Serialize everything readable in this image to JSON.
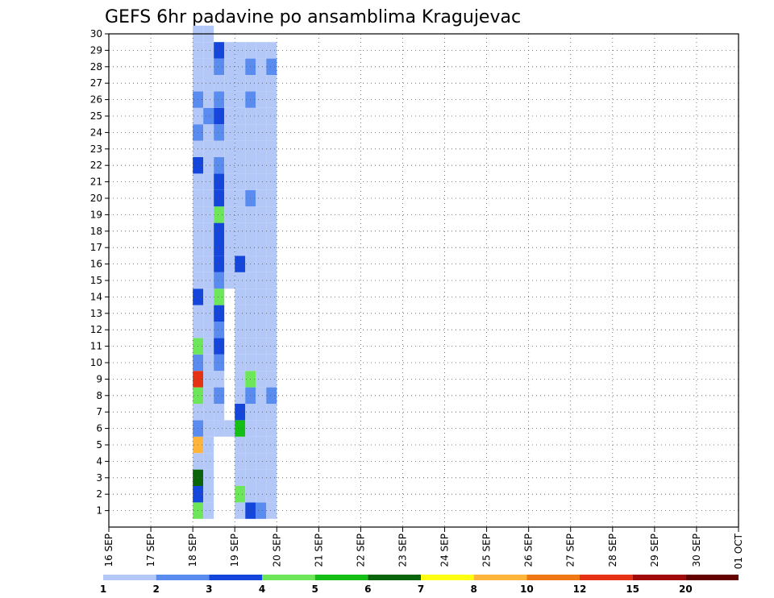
{
  "chart_data": {
    "type": "heatmap",
    "title": "GEFS 6hr padavine po ansamblima Kragujevac",
    "x_tick_labels": [
      "16 SEP",
      "17 SEP",
      "18 SEP",
      "19 SEP",
      "20 SEP",
      "21 SEP",
      "22 SEP",
      "23 SEP",
      "24 SEP",
      "25 SEP",
      "26 SEP",
      "27 SEP",
      "28 SEP",
      "29 SEP",
      "30 SEP",
      "01 OCT"
    ],
    "y_tick_labels": [
      "1",
      "2",
      "3",
      "4",
      "5",
      "6",
      "7",
      "8",
      "9",
      "10",
      "11",
      "12",
      "13",
      "14",
      "15",
      "16",
      "17",
      "18",
      "19",
      "20",
      "21",
      "22",
      "23",
      "24",
      "25",
      "26",
      "27",
      "28",
      "29",
      "30"
    ],
    "y_range": [
      0,
      30
    ],
    "x_range_days": [
      0,
      15
    ],
    "grid": "dotted",
    "colorbar": {
      "levels": [
        "1",
        "2",
        "3",
        "4",
        "5",
        "6",
        "7",
        "8",
        "10",
        "12",
        "15",
        "20"
      ],
      "colors": [
        "#b4c8f8",
        "#5a8cf0",
        "#1446dc",
        "#6ee65a",
        "#14be14",
        "#0a640a",
        "#ffff14",
        "#ffb43c",
        "#f07814",
        "#e63214",
        "#a00a0a",
        "#640000"
      ]
    },
    "cells": [
      [
        0,
        30,
        1
      ],
      [
        0,
        1,
        4
      ],
      [
        0,
        2,
        3
      ],
      [
        0,
        3,
        6
      ],
      [
        0,
        4,
        1
      ],
      [
        0,
        5,
        8
      ],
      [
        0,
        6,
        2
      ],
      [
        0,
        7,
        1
      ],
      [
        0,
        8,
        4
      ],
      [
        0,
        9,
        10
      ],
      [
        0,
        10,
        2
      ],
      [
        0,
        11,
        4
      ],
      [
        0,
        12,
        1
      ],
      [
        0,
        13,
        1
      ],
      [
        0,
        14,
        3
      ],
      [
        0,
        15,
        1
      ],
      [
        0,
        16,
        1
      ],
      [
        0,
        17,
        1
      ],
      [
        0,
        18,
        1
      ],
      [
        0,
        19,
        1
      ],
      [
        0,
        20,
        1
      ],
      [
        0,
        21,
        1
      ],
      [
        0,
        22,
        3
      ],
      [
        0,
        23,
        1
      ],
      [
        0,
        24,
        2
      ],
      [
        0,
        25,
        1
      ],
      [
        0,
        26,
        2
      ],
      [
        0,
        27,
        1
      ],
      [
        0,
        28,
        1
      ],
      [
        0,
        29,
        1
      ],
      [
        1,
        30,
        1
      ],
      [
        1,
        1,
        1
      ],
      [
        1,
        2,
        1
      ],
      [
        1,
        3,
        1
      ],
      [
        1,
        4,
        1
      ],
      [
        1,
        5,
        1
      ],
      [
        1,
        6,
        1
      ],
      [
        1,
        7,
        1
      ],
      [
        1,
        8,
        1
      ],
      [
        1,
        9,
        1
      ],
      [
        1,
        10,
        1
      ],
      [
        1,
        11,
        1
      ],
      [
        1,
        12,
        1
      ],
      [
        1,
        13,
        1
      ],
      [
        1,
        14,
        1
      ],
      [
        1,
        15,
        1
      ],
      [
        1,
        16,
        1
      ],
      [
        1,
        17,
        1
      ],
      [
        1,
        18,
        1
      ],
      [
        1,
        19,
        1
      ],
      [
        1,
        20,
        1
      ],
      [
        1,
        21,
        1
      ],
      [
        1,
        22,
        1
      ],
      [
        1,
        23,
        1
      ],
      [
        1,
        24,
        1
      ],
      [
        1,
        25,
        2
      ],
      [
        1,
        26,
        1
      ],
      [
        1,
        27,
        1
      ],
      [
        1,
        28,
        1
      ],
      [
        1,
        29,
        1
      ],
      [
        2,
        6,
        1
      ],
      [
        2,
        7,
        1
      ],
      [
        2,
        8,
        2
      ],
      [
        2,
        9,
        1
      ],
      [
        2,
        10,
        2
      ],
      [
        2,
        11,
        3
      ],
      [
        2,
        12,
        2
      ],
      [
        2,
        13,
        3
      ],
      [
        2,
        14,
        4
      ],
      [
        2,
        15,
        2
      ],
      [
        2,
        16,
        3
      ],
      [
        2,
        17,
        3
      ],
      [
        2,
        18,
        3
      ],
      [
        2,
        19,
        4
      ],
      [
        2,
        20,
        3
      ],
      [
        2,
        21,
        3
      ],
      [
        2,
        22,
        2
      ],
      [
        2,
        23,
        1
      ],
      [
        2,
        24,
        2
      ],
      [
        2,
        25,
        3
      ],
      [
        2,
        26,
        2
      ],
      [
        2,
        27,
        1
      ],
      [
        2,
        28,
        2
      ],
      [
        2,
        29,
        3
      ],
      [
        3,
        6,
        1
      ],
      [
        3,
        15,
        1
      ],
      [
        3,
        16,
        1
      ],
      [
        3,
        17,
        1
      ],
      [
        3,
        18,
        1
      ],
      [
        3,
        19,
        1
      ],
      [
        3,
        20,
        1
      ],
      [
        3,
        21,
        1
      ],
      [
        3,
        22,
        1
      ],
      [
        3,
        23,
        1
      ],
      [
        3,
        24,
        1
      ],
      [
        3,
        25,
        1
      ],
      [
        3,
        26,
        1
      ],
      [
        3,
        27,
        1
      ],
      [
        3,
        28,
        1
      ],
      [
        3,
        29,
        1
      ],
      [
        4,
        1,
        1
      ],
      [
        4,
        2,
        4
      ],
      [
        4,
        3,
        1
      ],
      [
        4,
        4,
        1
      ],
      [
        4,
        5,
        1
      ],
      [
        4,
        6,
        5
      ],
      [
        4,
        7,
        3
      ],
      [
        4,
        8,
        1
      ],
      [
        4,
        9,
        1
      ],
      [
        4,
        10,
        1
      ],
      [
        4,
        11,
        1
      ],
      [
        4,
        12,
        1
      ],
      [
        4,
        13,
        1
      ],
      [
        4,
        14,
        1
      ],
      [
        4,
        15,
        1
      ],
      [
        4,
        16,
        3
      ],
      [
        4,
        17,
        1
      ],
      [
        4,
        18,
        1
      ],
      [
        4,
        19,
        1
      ],
      [
        4,
        20,
        1
      ],
      [
        4,
        21,
        1
      ],
      [
        4,
        22,
        1
      ],
      [
        4,
        23,
        1
      ],
      [
        4,
        24,
        1
      ],
      [
        4,
        25,
        1
      ],
      [
        4,
        26,
        1
      ],
      [
        4,
        27,
        1
      ],
      [
        4,
        28,
        1
      ],
      [
        4,
        29,
        1
      ],
      [
        5,
        1,
        3
      ],
      [
        5,
        2,
        1
      ],
      [
        5,
        3,
        1
      ],
      [
        5,
        4,
        1
      ],
      [
        5,
        5,
        1
      ],
      [
        5,
        6,
        1
      ],
      [
        5,
        7,
        1
      ],
      [
        5,
        8,
        2
      ],
      [
        5,
        9,
        4
      ],
      [
        5,
        10,
        1
      ],
      [
        5,
        11,
        1
      ],
      [
        5,
        12,
        1
      ],
      [
        5,
        13,
        1
      ],
      [
        5,
        14,
        1
      ],
      [
        5,
        15,
        1
      ],
      [
        5,
        16,
        1
      ],
      [
        5,
        17,
        1
      ],
      [
        5,
        18,
        1
      ],
      [
        5,
        19,
        1
      ],
      [
        5,
        20,
        2
      ],
      [
        5,
        21,
        1
      ],
      [
        5,
        22,
        1
      ],
      [
        5,
        23,
        1
      ],
      [
        5,
        24,
        1
      ],
      [
        5,
        25,
        1
      ],
      [
        5,
        26,
        2
      ],
      [
        5,
        27,
        1
      ],
      [
        5,
        28,
        2
      ],
      [
        5,
        29,
        1
      ],
      [
        6,
        1,
        2
      ],
      [
        6,
        2,
        1
      ],
      [
        6,
        3,
        1
      ],
      [
        6,
        4,
        1
      ],
      [
        6,
        5,
        1
      ],
      [
        6,
        6,
        1
      ],
      [
        6,
        7,
        1
      ],
      [
        6,
        8,
        1
      ],
      [
        6,
        9,
        1
      ],
      [
        6,
        10,
        1
      ],
      [
        6,
        11,
        1
      ],
      [
        6,
        12,
        1
      ],
      [
        6,
        13,
        1
      ],
      [
        6,
        14,
        1
      ],
      [
        6,
        15,
        1
      ],
      [
        6,
        16,
        1
      ],
      [
        6,
        17,
        1
      ],
      [
        6,
        18,
        1
      ],
      [
        6,
        19,
        1
      ],
      [
        6,
        20,
        1
      ],
      [
        6,
        21,
        1
      ],
      [
        6,
        22,
        1
      ],
      [
        6,
        23,
        1
      ],
      [
        6,
        24,
        1
      ],
      [
        6,
        25,
        1
      ],
      [
        6,
        26,
        1
      ],
      [
        6,
        27,
        1
      ],
      [
        6,
        28,
        1
      ],
      [
        6,
        29,
        1
      ],
      [
        7,
        1,
        1
      ],
      [
        7,
        2,
        1
      ],
      [
        7,
        3,
        1
      ],
      [
        7,
        4,
        1
      ],
      [
        7,
        5,
        1
      ],
      [
        7,
        6,
        1
      ],
      [
        7,
        7,
        1
      ],
      [
        7,
        8,
        2
      ],
      [
        7,
        9,
        1
      ],
      [
        7,
        10,
        1
      ],
      [
        7,
        11,
        1
      ],
      [
        7,
        12,
        1
      ],
      [
        7,
        13,
        1
      ],
      [
        7,
        14,
        1
      ],
      [
        7,
        15,
        1
      ],
      [
        7,
        16,
        1
      ],
      [
        7,
        17,
        1
      ],
      [
        7,
        18,
        1
      ],
      [
        7,
        19,
        1
      ],
      [
        7,
        20,
        1
      ],
      [
        7,
        21,
        1
      ],
      [
        7,
        22,
        1
      ],
      [
        7,
        23,
        1
      ],
      [
        7,
        24,
        1
      ],
      [
        7,
        25,
        1
      ],
      [
        7,
        26,
        1
      ],
      [
        7,
        27,
        1
      ],
      [
        7,
        28,
        2
      ],
      [
        7,
        29,
        1
      ]
    ]
  }
}
